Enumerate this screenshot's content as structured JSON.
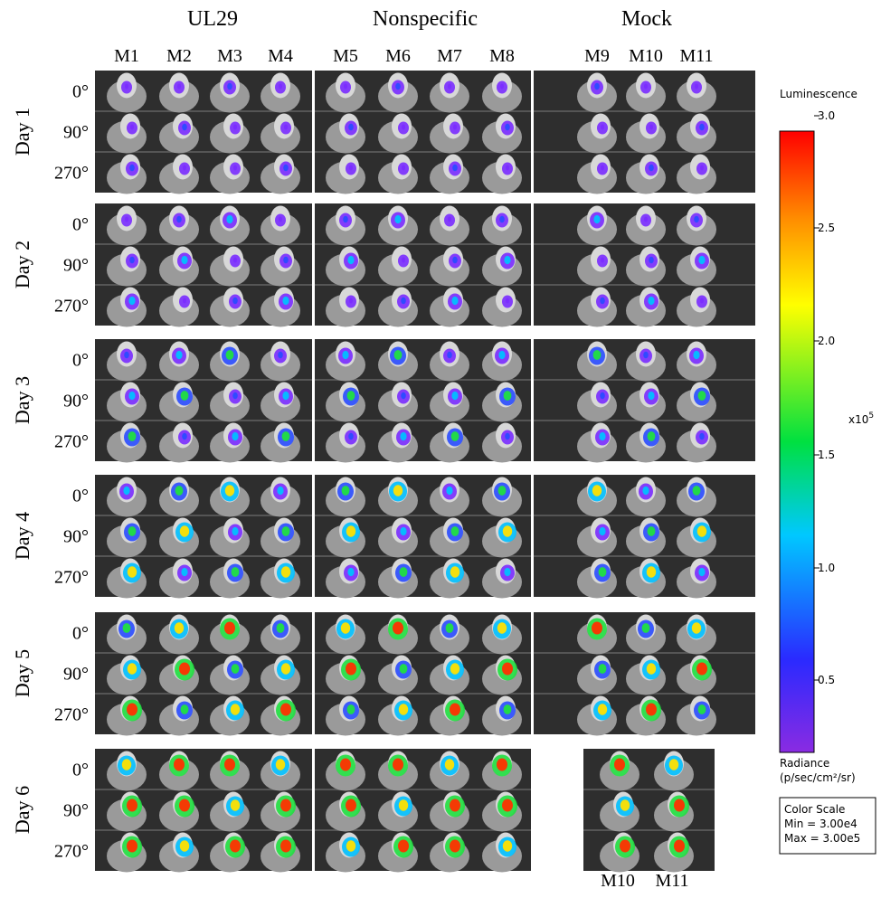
{
  "groups": [
    "UL29",
    "Nonspecific",
    "Mock"
  ],
  "mice": [
    "M1",
    "M2",
    "M3",
    "M4",
    "M5",
    "M6",
    "M7",
    "M8",
    "M9",
    "M10",
    "M11"
  ],
  "days": [
    "Day 1",
    "Day 2",
    "Day 3",
    "Day 4",
    "Day 5",
    "Day 6"
  ],
  "angles": [
    "0°",
    "90°",
    "270°"
  ],
  "day6_mock_mice": [
    "M10",
    "M11"
  ],
  "colorbar": {
    "title": "Luminescence",
    "ticks": [
      "3.0",
      "2.5",
      "2.0",
      "1.5",
      "1.0",
      "0.5"
    ],
    "multiplier": "x10",
    "exponent": "5",
    "unit_line1": "Radiance",
    "unit_line2": "(p/sec/cm²/sr)",
    "scale_box": [
      "Color Scale",
      "Min = 3.00e4",
      "Max = 3.00e5"
    ]
  }
}
